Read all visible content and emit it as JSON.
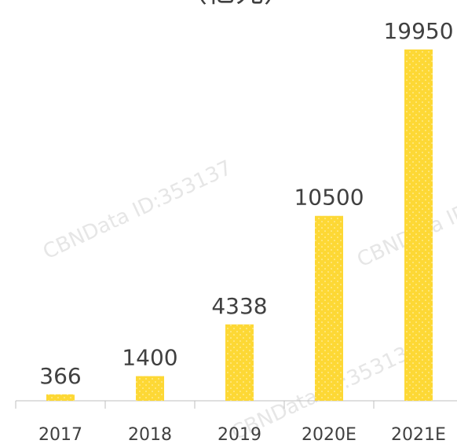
{
  "chart_data": {
    "type": "bar",
    "title": "（亿元）",
    "watermark": "CBNData ID:353137",
    "categories": [
      "2017",
      "2018",
      "2019",
      "2020E",
      "2021E"
    ],
    "values": [
      366,
      1400,
      4338,
      10500,
      19950
    ],
    "color": "#fdd835",
    "ylim": [
      0,
      22760
    ]
  }
}
